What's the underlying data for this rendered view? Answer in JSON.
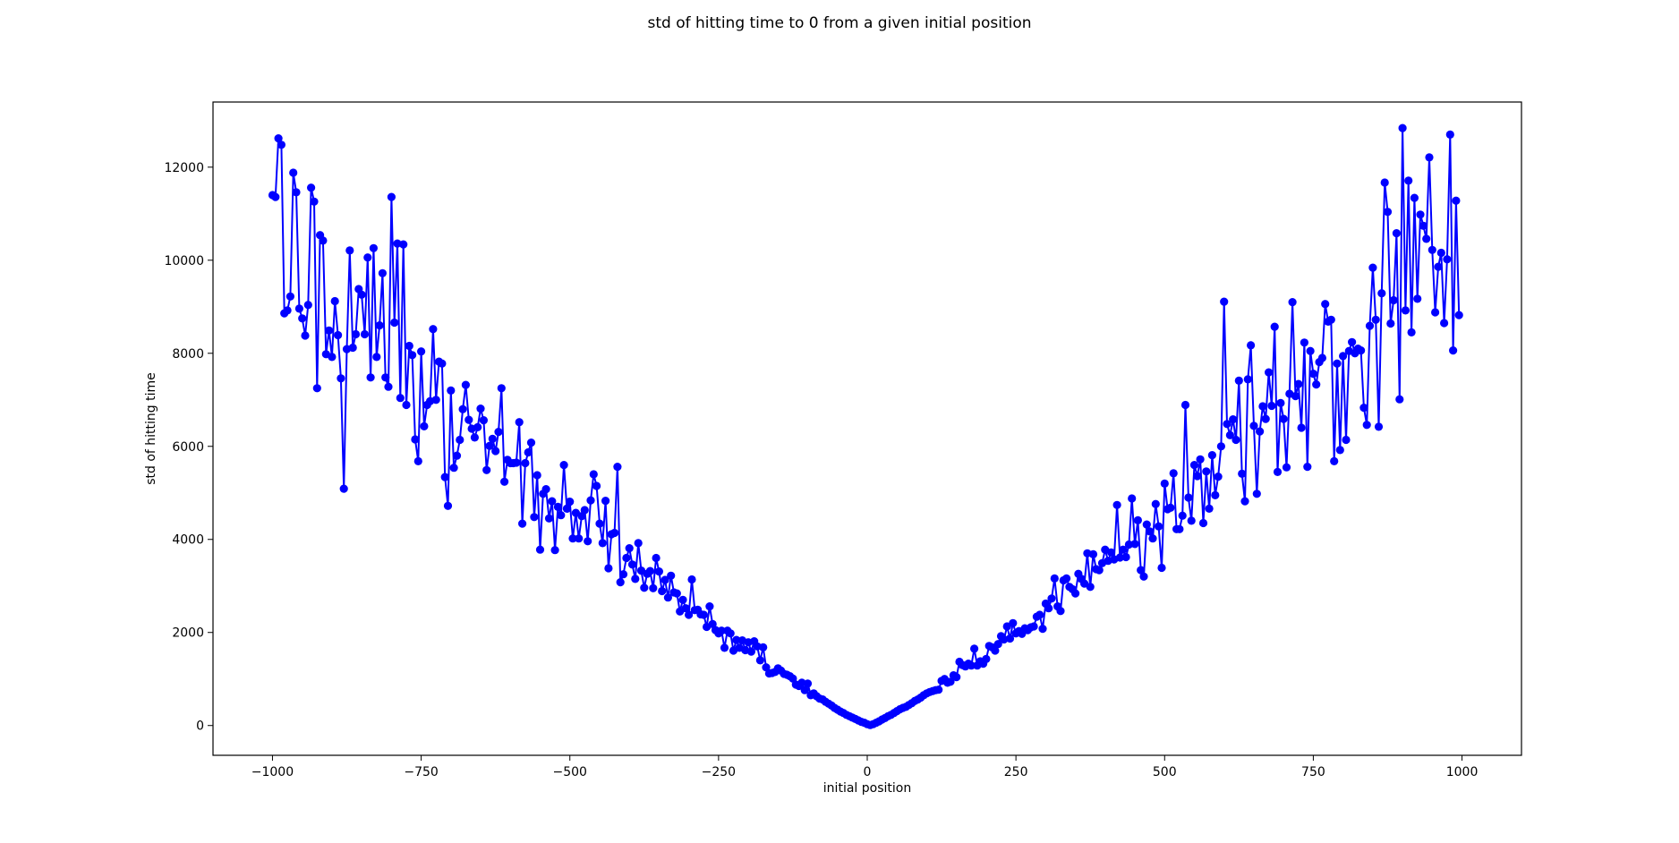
{
  "chart_data": {
    "type": "line",
    "title": "std of hitting time to 0 from a given initial position",
    "xlabel": "initial position",
    "ylabel": "std of hitting time",
    "xlim": [
      -1100,
      1100
    ],
    "ylim": [
      -640,
      13400
    ],
    "xticks": [
      -1000,
      -750,
      -500,
      -250,
      0,
      250,
      500,
      750,
      1000
    ],
    "xtick_labels": [
      "−1000",
      "−750",
      "−500",
      "−250",
      "0",
      "250",
      "500",
      "750",
      "1000"
    ],
    "yticks": [
      0,
      2000,
      4000,
      6000,
      8000,
      10000,
      12000
    ],
    "ytick_labels": [
      "0",
      "2000",
      "4000",
      "6000",
      "8000",
      "10000",
      "12000"
    ],
    "grid": false,
    "legend": "none",
    "series": [
      {
        "color": "#0000ff",
        "marker": "circle",
        "x": [
          -1000,
          -995,
          -990,
          -985,
          -980,
          -975,
          -970,
          -965,
          -960,
          -955,
          -950,
          -945,
          -940,
          -935,
          -930,
          -925,
          -920,
          -915,
          -910,
          -905,
          -900,
          -895,
          -890,
          -885,
          -880,
          -875,
          -870,
          -865,
          -860,
          -855,
          -850,
          -845,
          -840,
          -835,
          -830,
          -825,
          -820,
          -815,
          -810,
          -805,
          -800,
          -795,
          -790,
          -785,
          -780,
          -775,
          -770,
          -765,
          -760,
          -755,
          -750,
          -745,
          -740,
          -735,
          -730,
          -725,
          -720,
          -715,
          -710,
          -705,
          -700,
          -695,
          -690,
          -685,
          -680,
          -675,
          -670,
          -665,
          -660,
          -655,
          -650,
          -645,
          -640,
          -635,
          -630,
          -625,
          -620,
          -615,
          -610,
          -605,
          -600,
          -595,
          -590,
          -585,
          -580,
          -575,
          -570,
          -565,
          -560,
          -555,
          -550,
          -545,
          -540,
          -535,
          -530,
          -525,
          -520,
          -515,
          -510,
          -505,
          -500,
          -495,
          -490,
          -485,
          -480,
          -475,
          -470,
          -465,
          -460,
          -455,
          -450,
          -445,
          -440,
          -435,
          -430,
          -425,
          -420,
          -415,
          -410,
          -405,
          -400,
          -395,
          -390,
          -385,
          -380,
          -375,
          -370,
          -365,
          -360,
          -355,
          -350,
          -345,
          -340,
          -335,
          -330,
          -325,
          -320,
          -315,
          -310,
          -305,
          -300,
          -295,
          -290,
          -285,
          -280,
          -275,
          -270,
          -265,
          -260,
          -255,
          -250,
          -245,
          -240,
          -235,
          -230,
          -225,
          -220,
          -215,
          -210,
          -205,
          -200,
          -195,
          -190,
          -185,
          -180,
          -175,
          -170,
          -165,
          -160,
          -155,
          -150,
          -145,
          -140,
          -135,
          -130,
          -125,
          -120,
          -115,
          -110,
          -105,
          -100,
          -95,
          -90,
          -85,
          -80,
          -75,
          -70,
          -65,
          -60,
          -55,
          -50,
          -45,
          -40,
          -35,
          -30,
          -25,
          -20,
          -15,
          -10,
          -5,
          0,
          5,
          10,
          15,
          20,
          25,
          30,
          35,
          40,
          45,
          50,
          55,
          60,
          65,
          70,
          75,
          80,
          85,
          90,
          95,
          100,
          105,
          110,
          115,
          120,
          125,
          130,
          135,
          140,
          145,
          150,
          155,
          160,
          165,
          170,
          175,
          180,
          185,
          190,
          195,
          200,
          205,
          210,
          215,
          220,
          225,
          230,
          235,
          240,
          245,
          250,
          255,
          260,
          265,
          270,
          275,
          280,
          285,
          290,
          295,
          300,
          305,
          310,
          315,
          320,
          325,
          330,
          335,
          340,
          345,
          350,
          355,
          360,
          365,
          370,
          375,
          380,
          385,
          390,
          395,
          400,
          405,
          410,
          415,
          420,
          425,
          430,
          435,
          440,
          445,
          450,
          455,
          460,
          465,
          470,
          475,
          480,
          485,
          490,
          495,
          500,
          505,
          510,
          515,
          520,
          525,
          530,
          535,
          540,
          545,
          550,
          555,
          560,
          565,
          570,
          575,
          580,
          585,
          590,
          595,
          600,
          605,
          610,
          615,
          620,
          625,
          630,
          635,
          640,
          645,
          650,
          655,
          660,
          665,
          670,
          675,
          680,
          685,
          690,
          695,
          700,
          705,
          710,
          715,
          720,
          725,
          730,
          735,
          740,
          745,
          750,
          755,
          760,
          765,
          770,
          775,
          780,
          785,
          790,
          795,
          800,
          805,
          810,
          815,
          820,
          825,
          830,
          835,
          840,
          845,
          850,
          855,
          860,
          865,
          870,
          875,
          880,
          885,
          890,
          895,
          900,
          905,
          910,
          915,
          920,
          925,
          930,
          935,
          940,
          945,
          950,
          955,
          960,
          965,
          970,
          975,
          980,
          985,
          990,
          995
        ],
        "y": [
          11400,
          11360,
          12620,
          12480,
          8860,
          8920,
          9220,
          11880,
          11460,
          8960,
          8750,
          8380,
          9040,
          11560,
          11260,
          7250,
          10540,
          10420,
          7980,
          8490,
          7920,
          9120,
          8390,
          7460,
          5090,
          8090,
          10210,
          8120,
          8410,
          9380,
          9260,
          8410,
          10060,
          7480,
          10260,
          7920,
          8600,
          9720,
          7480,
          7280,
          11360,
          8660,
          10360,
          7040,
          10340,
          6890,
          8160,
          7960,
          6150,
          5680,
          8040,
          6430,
          6890,
          6970,
          8520,
          7000,
          7820,
          7780,
          5340,
          4720,
          7200,
          5540,
          5800,
          6140,
          6800,
          7320,
          6570,
          6380,
          6190,
          6410,
          6810,
          6560,
          5490,
          6010,
          6160,
          5900,
          6310,
          7250,
          5240,
          5710,
          5640,
          5640,
          5650,
          6520,
          4340,
          5640,
          5870,
          6080,
          4480,
          5380,
          3780,
          4980,
          5080,
          4450,
          4820,
          3770,
          4700,
          4520,
          5600,
          4660,
          4810,
          4020,
          4570,
          4020,
          4500,
          4630,
          3960,
          4840,
          5400,
          5150,
          4340,
          3920,
          4830,
          3380,
          4110,
          4140,
          5560,
          3080,
          3250,
          3600,
          3810,
          3460,
          3150,
          3920,
          3330,
          2960,
          3260,
          3320,
          2950,
          3600,
          3310,
          2890,
          3130,
          2750,
          3220,
          2860,
          2840,
          2450,
          2700,
          2520,
          2380,
          3140,
          2480,
          2490,
          2390,
          2380,
          2120,
          2560,
          2180,
          2050,
          1980,
          2040,
          1670,
          2040,
          1980,
          1610,
          1840,
          1670,
          1830,
          1620,
          1790,
          1590,
          1810,
          1700,
          1400,
          1680,
          1250,
          1120,
          1130,
          1150,
          1230,
          1180,
          1110,
          1090,
          1060,
          1010,
          880,
          850,
          920,
          760,
          900,
          650,
          690,
          630,
          580,
          560,
          510,
          470,
          430,
          380,
          340,
          300,
          270,
          230,
          200,
          170,
          140,
          110,
          80,
          60,
          30,
          10,
          30,
          60,
          90,
          130,
          160,
          200,
          230,
          270,
          310,
          350,
          380,
          400,
          440,
          480,
          530,
          560,
          600,
          650,
          690,
          720,
          740,
          760,
          770,
          960,
          1000,
          920,
          940,
          1080,
          1040,
          1370,
          1300,
          1270,
          1330,
          1290,
          1650,
          1290,
          1380,
          1330,
          1430,
          1710,
          1680,
          1610,
          1750,
          1920,
          1850,
          2130,
          1870,
          2200,
          1980,
          2030,
          1970,
          2090,
          2050,
          2110,
          2130,
          2340,
          2380,
          2080,
          2620,
          2520,
          2730,
          3160,
          2560,
          2460,
          3120,
          3160,
          2980,
          2930,
          2840,
          3260,
          3150,
          3050,
          3700,
          2980,
          3680,
          3360,
          3340,
          3490,
          3780,
          3540,
          3720,
          3570,
          4740,
          3610,
          3780,
          3620,
          3890,
          4880,
          3900,
          4410,
          3340,
          3200,
          4320,
          4170,
          4020,
          4760,
          4280,
          3390,
          5200,
          4650,
          4680,
          5420,
          4220,
          4220,
          4510,
          6890,
          4900,
          4400,
          5600,
          5360,
          5720,
          4350,
          5460,
          4660,
          5810,
          4950,
          5350,
          6000,
          9110,
          6480,
          6240,
          6580,
          6140,
          7410,
          5410,
          4820,
          7440,
          8170,
          6440,
          4980,
          6320,
          6860,
          6590,
          7590,
          6870,
          8570,
          5450,
          6930,
          6590,
          5550,
          7130,
          9100,
          7080,
          7340,
          6400,
          8230,
          5560,
          8050,
          7560,
          7330,
          7810,
          7900,
          9060,
          8680,
          8720,
          5680,
          7780,
          5920,
          7940,
          6140,
          8050,
          8240,
          8000,
          8100,
          8060,
          6830,
          6460,
          8590,
          9840,
          8720,
          6420,
          9290,
          11670,
          11040,
          8640,
          9140,
          10580,
          7010,
          12840,
          8920,
          11710,
          8450,
          11340,
          9170,
          10980,
          10740,
          10460,
          12210,
          10220,
          8880,
          9860,
          10160,
          8650,
          10020,
          12700,
          8060,
          11280,
          8820
        ]
      }
    ]
  }
}
